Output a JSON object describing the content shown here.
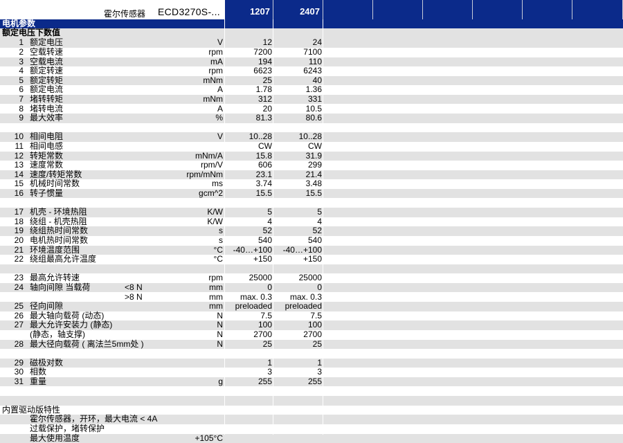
{
  "header": {
    "sensor_label": "霍尔传感器",
    "model": "ECD3270S-...",
    "columns": [
      "1207",
      "2407"
    ]
  },
  "section_title": "电机参数",
  "subsection_title": "额定电压下数值",
  "rows": [
    {
      "num": "1",
      "name": "额定电压",
      "sub": "",
      "unit": "V",
      "v1": "12",
      "v2": "24"
    },
    {
      "num": "2",
      "name": "空载转速",
      "sub": "",
      "unit": "rpm",
      "v1": "7200",
      "v2": "7100"
    },
    {
      "num": "3",
      "name": "空载电流",
      "sub": "",
      "unit": "mA",
      "v1": "194",
      "v2": "110"
    },
    {
      "num": "4",
      "name": "额定转速",
      "sub": "",
      "unit": "rpm",
      "v1": "6623",
      "v2": "6243"
    },
    {
      "num": "5",
      "name": "额定转矩",
      "sub": "",
      "unit": "mNm",
      "v1": "25",
      "v2": "40"
    },
    {
      "num": "6",
      "name": "额定电流",
      "sub": "",
      "unit": "A",
      "v1": "1.78",
      "v2": "1.36"
    },
    {
      "num": "7",
      "name": "堵转转矩",
      "sub": "",
      "unit": "mNm",
      "v1": "312",
      "v2": "331"
    },
    {
      "num": "8",
      "name": "堵转电流",
      "sub": "",
      "unit": "A",
      "v1": "20",
      "v2": "10.5"
    },
    {
      "num": "9",
      "name": "最大效率",
      "sub": "",
      "unit": "%",
      "v1": "81.3",
      "v2": "80.6"
    },
    {
      "num": "",
      "name": "",
      "sub": "",
      "unit": "",
      "v1": "",
      "v2": ""
    },
    {
      "num": "10",
      "name": "相间电阻",
      "sub": "",
      "unit": "V",
      "v1": "10..28",
      "v2": "10..28"
    },
    {
      "num": "11",
      "name": "相间电感",
      "sub": "",
      "unit": "",
      "v1": "CW",
      "v2": "CW"
    },
    {
      "num": "12",
      "name": "转矩常数",
      "sub": "",
      "unit": "mNm/A",
      "v1": "15.8",
      "v2": "31.9"
    },
    {
      "num": "13",
      "name": "速度常数",
      "sub": "",
      "unit": "rpm/V",
      "v1": "606",
      "v2": "299"
    },
    {
      "num": "14",
      "name": "速度/转矩常数",
      "sub": "",
      "unit": "rpm/mNm",
      "v1": "23.1",
      "v2": "21.4"
    },
    {
      "num": "15",
      "name": "机械时间常数",
      "sub": "",
      "unit": "ms",
      "v1": "3.74",
      "v2": "3.48"
    },
    {
      "num": "16",
      "name": "转子惯量",
      "sub": "",
      "unit": "gcm^2",
      "v1": "15.5",
      "v2": "15.5"
    },
    {
      "num": "",
      "name": "",
      "sub": "",
      "unit": "",
      "v1": "",
      "v2": ""
    },
    {
      "num": "17",
      "name": "机壳 - 环境热阻",
      "sub": "",
      "unit": "K/W",
      "v1": "5",
      "v2": "5"
    },
    {
      "num": "18",
      "name": "绕组 - 机壳热阻",
      "sub": "",
      "unit": "K/W",
      "v1": "4",
      "v2": "4"
    },
    {
      "num": "19",
      "name": "绕组热时间常数",
      "sub": "",
      "unit": "s",
      "v1": "52",
      "v2": "52"
    },
    {
      "num": "20",
      "name": "电机热时间常数",
      "sub": "",
      "unit": "s",
      "v1": "540",
      "v2": "540"
    },
    {
      "num": "21",
      "name": "环境温度范围",
      "sub": "",
      "unit": "°C",
      "v1": "-40…+100",
      "v2": "-40…+100"
    },
    {
      "num": "22",
      "name": "绕组最高允许温度",
      "sub": "",
      "unit": "°C",
      "v1": "+150",
      "v2": "+150"
    },
    {
      "num": "",
      "name": "",
      "sub": "",
      "unit": "",
      "v1": "",
      "v2": ""
    },
    {
      "num": "23",
      "name": "最高允许转速",
      "sub": "",
      "unit": "rpm",
      "v1": "25000",
      "v2": "25000"
    },
    {
      "num": "24",
      "name": "轴向间隙  当载荷",
      "sub": "<8 N",
      "unit": "mm",
      "v1": "0",
      "v2": "0"
    },
    {
      "num": "",
      "name": "",
      "sub": ">8 N",
      "unit": "mm",
      "v1": "max. 0.3",
      "v2": "max. 0.3"
    },
    {
      "num": "25",
      "name": "径向间隙",
      "sub": "",
      "unit": "mm",
      "v1": "preloaded",
      "v2": "preloaded"
    },
    {
      "num": "26",
      "name": "最大轴向载荷 (动态)",
      "sub": "",
      "unit": "N",
      "v1": "7.5",
      "v2": "7.5"
    },
    {
      "num": "27",
      "name": "最大允许安装力 (静态)",
      "sub": "",
      "unit": "N",
      "v1": "100",
      "v2": "100"
    },
    {
      "num": "",
      "name": "(静态，轴支撑)",
      "sub": "",
      "unit": "N",
      "v1": "2700",
      "v2": "2700"
    },
    {
      "num": "28",
      "name": "最大径向载荷 ( 离法兰5mm处 )",
      "sub": "",
      "unit": "N",
      "v1": "25",
      "v2": "25"
    },
    {
      "num": "",
      "name": "",
      "sub": "",
      "unit": "",
      "v1": "",
      "v2": ""
    },
    {
      "num": "29",
      "name": "磁极对数",
      "sub": "",
      "unit": "",
      "v1": "1",
      "v2": "1"
    },
    {
      "num": "30",
      "name": "相数",
      "sub": "",
      "unit": "",
      "v1": "3",
      "v2": "3"
    },
    {
      "num": "31",
      "name": "重量",
      "sub": "",
      "unit": "g",
      "v1": "255",
      "v2": "255"
    },
    {
      "num": "",
      "name": "",
      "sub": "",
      "unit": "",
      "v1": "",
      "v2": ""
    },
    {
      "num": "",
      "name": "",
      "sub": "",
      "unit": "",
      "v1": "",
      "v2": ""
    }
  ],
  "driver": {
    "title": "内置驱动版特性",
    "lines": [
      {
        "text": "霍尔传感器，开环，最大电流 < 4A",
        "value": ""
      },
      {
        "text": "过载保护，堵转保护",
        "value": ""
      },
      {
        "text": "最大使用温度",
        "value": "+105°C"
      }
    ]
  }
}
